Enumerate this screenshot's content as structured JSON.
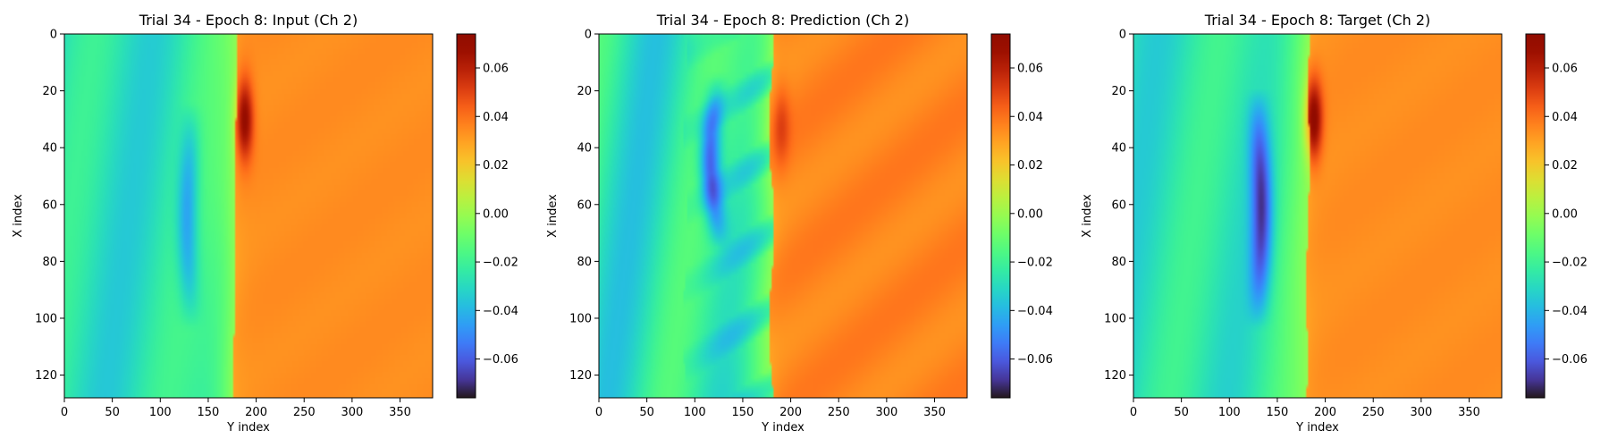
{
  "figure": {
    "colormap": "turbo",
    "panels_label": "heatmap triptych"
  },
  "chart_data": [
    {
      "type": "heatmap",
      "title": "Trial 34 - Epoch 8: Input (Ch 2)",
      "xlabel": "Y index",
      "ylabel": "X index",
      "xlim": [
        0,
        384
      ],
      "ylim": [
        128,
        0
      ],
      "xticks": [
        0,
        50,
        100,
        150,
        200,
        250,
        300,
        350
      ],
      "yticks": [
        0,
        20,
        40,
        60,
        80,
        100,
        120
      ],
      "colorbar": {
        "vmin": -0.076,
        "vmax": 0.074,
        "ticks": [
          "0.06",
          "0.04",
          "0.02",
          "0.00",
          "−0.02",
          "−0.04",
          "−0.06"
        ],
        "tick_values": [
          0.06,
          0.04,
          0.02,
          0.0,
          -0.02,
          -0.04,
          -0.06
        ]
      },
      "field": {
        "front_y": 178,
        "front_slope": -0.02,
        "hot_spot": {
          "x": 30,
          "y": 188,
          "value": 0.072
        },
        "cold_band": {
          "x_range": [
            30,
            98
          ],
          "y": 130,
          "min_value": -0.055
        },
        "left_value": -0.028,
        "right_value": 0.034,
        "noise": 0.3
      }
    },
    {
      "type": "heatmap",
      "title": "Trial 34 - Epoch 8: Prediction (Ch 2)",
      "xlabel": "Y index",
      "ylabel": "X index",
      "xlim": [
        0,
        384
      ],
      "ylim": [
        128,
        0
      ],
      "xticks": [
        0,
        50,
        100,
        150,
        200,
        250,
        300,
        350
      ],
      "yticks": [
        0,
        20,
        40,
        60,
        80,
        100,
        120
      ],
      "colorbar": {
        "vmin": -0.076,
        "vmax": 0.074,
        "ticks": [
          "0.06",
          "0.04",
          "0.02",
          "0.00",
          "−0.02",
          "−0.04",
          "−0.06"
        ],
        "tick_values": [
          0.06,
          0.04,
          0.02,
          0.0,
          -0.02,
          -0.04,
          -0.06
        ]
      },
      "field": {
        "front_y": 180,
        "front_slope": 0.0,
        "hot_spot": {
          "x": 32,
          "y": 190,
          "value": 0.05
        },
        "cold_band": {
          "x_range": [
            20,
            70
          ],
          "y": 122,
          "min_value": -0.07
        },
        "left_value": -0.026,
        "right_value": 0.036,
        "noise": 1.0
      }
    },
    {
      "type": "heatmap",
      "title": "Trial 34 - Epoch 8: Target (Ch 2)",
      "xlabel": "Y index",
      "ylabel": "X index",
      "xlim": [
        0,
        384
      ],
      "ylim": [
        128,
        0
      ],
      "xticks": [
        0,
        50,
        100,
        150,
        200,
        250,
        300,
        350
      ],
      "yticks": [
        0,
        20,
        40,
        60,
        80,
        100,
        120
      ],
      "colorbar": {
        "vmin": -0.076,
        "vmax": 0.074,
        "ticks": [
          "0.06",
          "0.04",
          "0.02",
          "0.00",
          "−0.02",
          "−0.04",
          "−0.06"
        ],
        "tick_values": [
          0.06,
          0.04,
          0.02,
          0.0,
          -0.02,
          -0.04,
          -0.06
        ]
      },
      "field": {
        "front_y": 182,
        "front_slope": -0.03,
        "hot_spot": {
          "x": 30,
          "y": 188,
          "value": 0.074
        },
        "cold_band": {
          "x_range": [
            25,
            98
          ],
          "y": 132,
          "min_value": -0.068
        },
        "left_value": -0.027,
        "right_value": 0.034,
        "noise": 0.3
      }
    }
  ]
}
